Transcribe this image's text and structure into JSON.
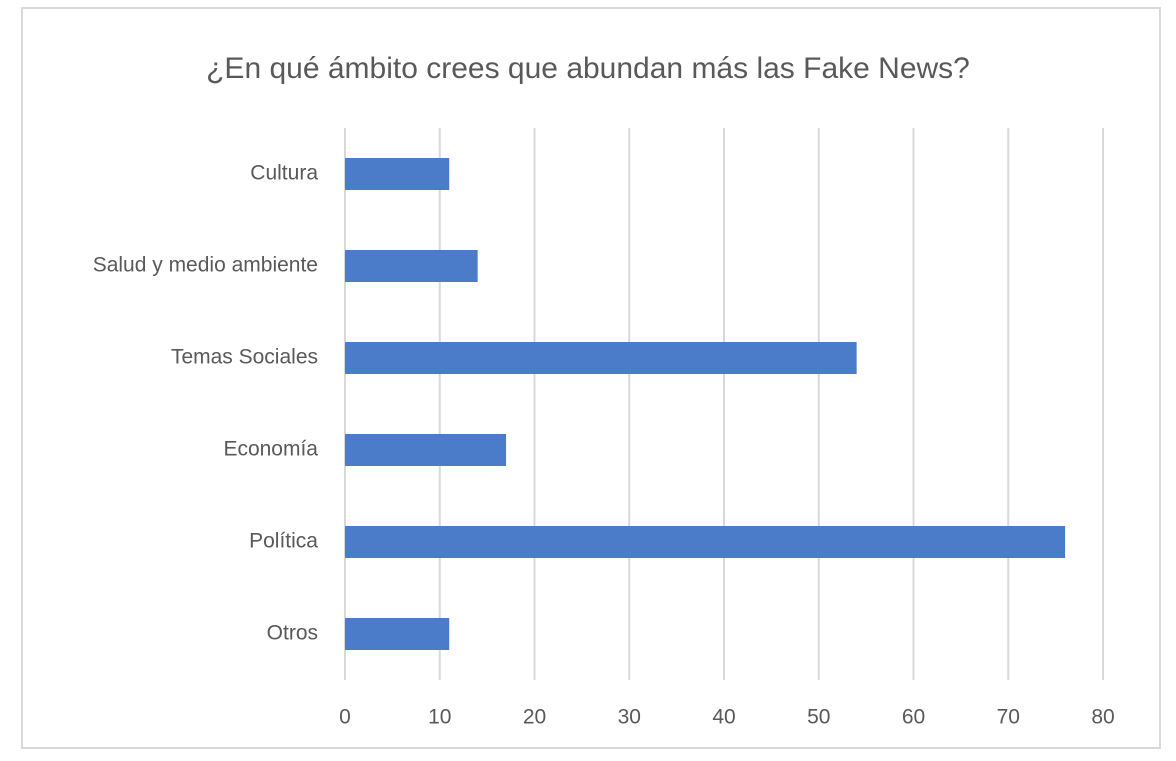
{
  "chart_data": {
    "type": "hbar",
    "title": "¿En qué ámbito crees que abundan más las Fake News?",
    "categories": [
      "Cultura",
      "Salud y medio ambiente",
      "Temas Sociales",
      "Economía",
      "Política",
      "Otros"
    ],
    "values": [
      11,
      14,
      54,
      17,
      76,
      11
    ],
    "color": "#4a7cc9",
    "xlim": [
      0,
      80
    ],
    "xticks": [
      0,
      10,
      20,
      30,
      40,
      50,
      60,
      70,
      80
    ],
    "grid": true
  }
}
